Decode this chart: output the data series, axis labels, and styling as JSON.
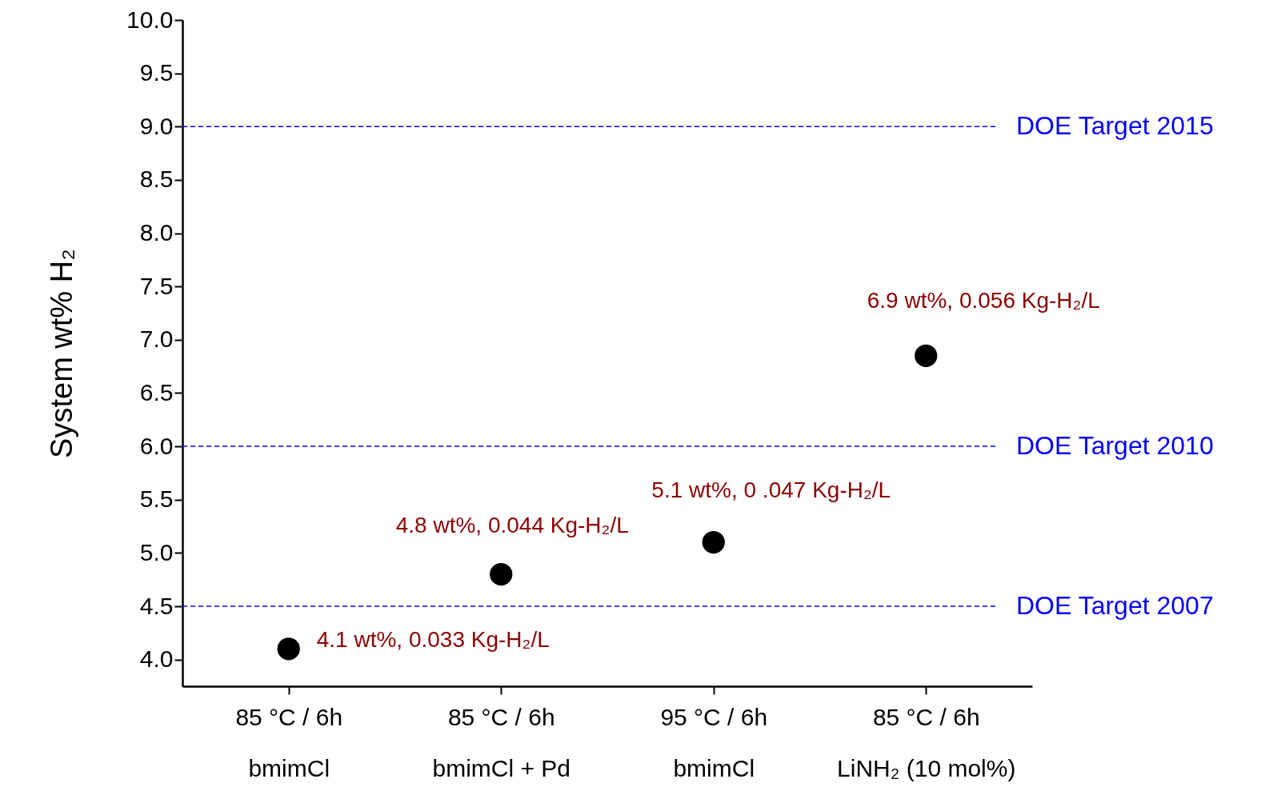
{
  "chart_data": {
    "type": "scatter",
    "ylabel": "System wt% H₂",
    "categories": [
      "85 °C / 6h\nbmimCl",
      "85 °C / 6h\nbmimCl + Pd",
      "95 °C / 6h\nbmimCl",
      "85 °C / 6h\nLiNH₂ (10 mol%)"
    ],
    "series": [
      {
        "color": "#000000",
        "values": [
          4.1,
          4.8,
          5.1,
          6.85
        ]
      }
    ],
    "ylim": [
      3.75,
      10
    ],
    "yticks": [
      {
        "value": 4,
        "label": "4.0"
      },
      {
        "value": 4.5,
        "label": "4.5"
      },
      {
        "value": 5,
        "label": "5.0"
      },
      {
        "value": 5.5,
        "label": "5.5"
      },
      {
        "value": 6,
        "label": "6.0"
      },
      {
        "value": 6.5,
        "label": "6.5"
      },
      {
        "value": 7,
        "label": "7.0"
      },
      {
        "value": 7.5,
        "label": "7.5"
      },
      {
        "value": 8,
        "label": "8.0"
      },
      {
        "value": 8.5,
        "label": "8.5"
      },
      {
        "value": 9,
        "label": "9.0"
      },
      {
        "value": 9.5,
        "label": "9.5"
      },
      {
        "value": 10,
        "label": "10.0"
      }
    ],
    "ref_lines": [
      {
        "axis": "y",
        "value": 4.5,
        "label": "DOE Target 2007",
        "color": "#0000ff",
        "line_style": "dashed"
      },
      {
        "axis": "y",
        "value": 6,
        "label": "DOE Target 2010",
        "color": "#0000ff",
        "line_style": "dashed"
      },
      {
        "axis": "y",
        "value": 9,
        "label": "DOE Target 2015",
        "color": "#0000ff",
        "line_style": "dashed"
      }
    ],
    "annotations": [
      {
        "text": "4.1 wt%, 0.033 Kg-H₂/L",
        "x": "85 °C / 6h\nbmimCl",
        "y": 4.1
      },
      {
        "text": "4.8 wt%, 0.044 Kg-H₂/L",
        "x": "85 °C / 6h\nbmimCl + Pd",
        "y": 4.8
      },
      {
        "text": "5.1 wt%, 0 .047 Kg-H₂/L",
        "x": "95 °C / 6h\nbmimCl",
        "y": 5.1
      },
      {
        "text": "6.9 wt%, 0.056 Kg-H₂/L",
        "x": "85 °C / 6h\nLiNH₂ (10 mol%)",
        "y": 6.85
      }
    ],
    "marker": "circle"
  }
}
